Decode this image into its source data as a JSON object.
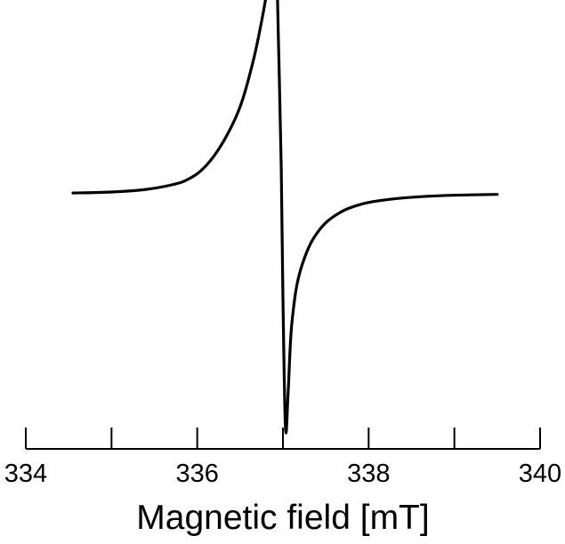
{
  "chart_data": {
    "type": "line",
    "title": "",
    "xlabel": "Magnetic field [mT]",
    "ylabel": "",
    "xlim": [
      334,
      340
    ],
    "ylim": [
      -1.0,
      1.0
    ],
    "x_ticks": [
      334,
      335,
      336,
      337,
      338,
      339,
      340
    ],
    "x_tick_labels": [
      "334",
      "",
      "336",
      "",
      "338",
      "",
      "340"
    ],
    "y_axis_visible": false,
    "grid": false,
    "legend": "none",
    "line_color": "#000000",
    "series": [
      {
        "x": [
          334.55,
          335.0,
          335.4,
          335.7,
          335.9,
          336.1,
          336.3,
          336.5,
          336.65,
          336.75,
          336.83,
          336.88,
          336.92,
          336.95,
          336.98,
          337.0,
          337.03,
          337.06,
          337.09,
          337.12,
          337.17,
          337.25,
          337.35,
          337.5,
          337.7,
          337.9,
          338.1,
          338.4,
          338.8,
          339.2,
          339.5
        ],
        "y": [
          -0.004,
          0.0,
          0.011,
          0.03,
          0.055,
          0.11,
          0.21,
          0.36,
          0.55,
          0.72,
          0.88,
          0.96,
          1.0,
          0.6,
          0.1,
          -0.45,
          -1.0,
          -0.85,
          -0.62,
          -0.5,
          -0.38,
          -0.28,
          -0.2,
          -0.13,
          -0.08,
          -0.053,
          -0.038,
          -0.025,
          -0.016,
          -0.012,
          -0.01
        ]
      }
    ]
  }
}
